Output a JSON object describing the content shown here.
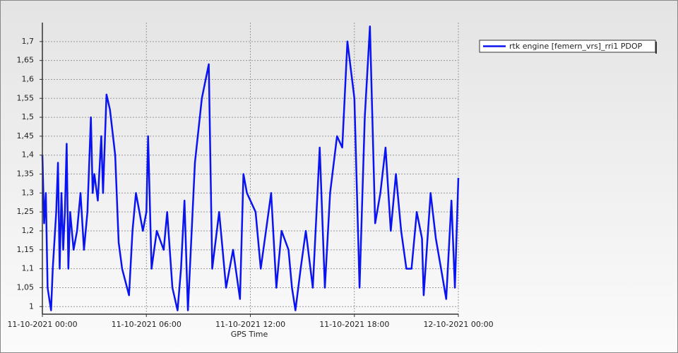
{
  "chart_data": {
    "type": "line",
    "x_label": "GPS Time",
    "xlim": [
      0,
      24
    ],
    "xticks": [
      {
        "value": 0,
        "label": "11-10-2021 00:00"
      },
      {
        "value": 6,
        "label": "11-10-2021 06:00"
      },
      {
        "value": 12,
        "label": "11-10-2021 12:00"
      },
      {
        "value": 18,
        "label": "11-10-2021 18:00"
      },
      {
        "value": 24,
        "label": "12-10-2021 00:00"
      }
    ],
    "ylim": [
      0.98,
      1.75
    ],
    "yticks": [
      {
        "value": 1,
        "label": "1"
      },
      {
        "value": 1.05,
        "label": "1,05"
      },
      {
        "value": 1.1,
        "label": "1,1"
      },
      {
        "value": 1.15,
        "label": "1,15"
      },
      {
        "value": 1.2,
        "label": "1,2"
      },
      {
        "value": 1.25,
        "label": "1,25"
      },
      {
        "value": 1.3,
        "label": "1,3"
      },
      {
        "value": 1.35,
        "label": "1,35"
      },
      {
        "value": 1.4,
        "label": "1,4"
      },
      {
        "value": 1.45,
        "label": "1,45"
      },
      {
        "value": 1.5,
        "label": "1,5"
      },
      {
        "value": 1.55,
        "label": "1,55"
      },
      {
        "value": 1.6,
        "label": "1,6"
      },
      {
        "value": 1.65,
        "label": "1,65"
      },
      {
        "value": 1.7,
        "label": "1,7"
      }
    ],
    "grid": true,
    "legend": "right",
    "x": [
      0,
      0.1,
      0.2,
      0.3,
      0.4,
      0.5,
      0.6,
      0.8,
      0.9,
      1.0,
      1.1,
      1.2,
      1.3,
      1.4,
      1.5,
      1.6,
      1.8,
      2.0,
      2.2,
      2.4,
      2.6,
      2.8,
      2.9,
      3.0,
      3.2,
      3.4,
      3.5,
      3.7,
      3.9,
      4.2,
      4.4,
      4.6,
      5.0,
      5.2,
      5.4,
      5.8,
      6.0,
      6.1,
      6.3,
      6.6,
      7.0,
      7.2,
      7.5,
      7.8,
      8.0,
      8.2,
      8.4,
      8.8,
      9.2,
      9.6,
      9.8,
      10.2,
      10.6,
      11.0,
      11.4,
      11.6,
      11.8,
      12.3,
      12.6,
      12.9,
      13.2,
      13.5,
      13.8,
      14.2,
      14.4,
      14.6,
      14.9,
      15.2,
      15.6,
      16.0,
      16.3,
      16.6,
      17.0,
      17.3,
      17.6,
      18.0,
      18.3,
      18.6,
      18.9,
      19.2,
      19.5,
      19.8,
      20.1,
      20.4,
      20.7,
      21.0,
      21.3,
      21.6,
      21.9,
      22.0,
      22.4,
      22.7,
      23.0,
      23.3,
      23.6,
      23.8,
      24.0
    ],
    "series": [
      {
        "name": "rtk engine [femern_vrs]_rri1 PDOP",
        "color": "#0a14f0",
        "values": [
          1.4,
          1.22,
          1.3,
          1.05,
          1.02,
          0.99,
          1.1,
          1.25,
          1.38,
          1.1,
          1.3,
          1.15,
          1.25,
          1.43,
          1.1,
          1.25,
          1.15,
          1.2,
          1.3,
          1.15,
          1.25,
          1.5,
          1.3,
          1.35,
          1.28,
          1.45,
          1.3,
          1.56,
          1.52,
          1.4,
          1.17,
          1.1,
          1.03,
          1.2,
          1.3,
          1.2,
          1.25,
          1.45,
          1.1,
          1.2,
          1.15,
          1.25,
          1.05,
          0.99,
          1.1,
          1.28,
          0.99,
          1.38,
          1.55,
          1.64,
          1.1,
          1.25,
          1.05,
          1.15,
          1.02,
          1.35,
          1.3,
          1.25,
          1.1,
          1.2,
          1.3,
          1.05,
          1.2,
          1.15,
          1.05,
          0.99,
          1.1,
          1.2,
          1.05,
          1.42,
          1.05,
          1.3,
          1.45,
          1.42,
          1.7,
          1.55,
          1.05,
          1.5,
          1.74,
          1.22,
          1.3,
          1.42,
          1.2,
          1.35,
          1.2,
          1.1,
          1.1,
          1.25,
          1.18,
          1.03,
          1.3,
          1.18,
          1.1,
          1.02,
          1.28,
          1.05,
          1.34
        ]
      }
    ]
  }
}
